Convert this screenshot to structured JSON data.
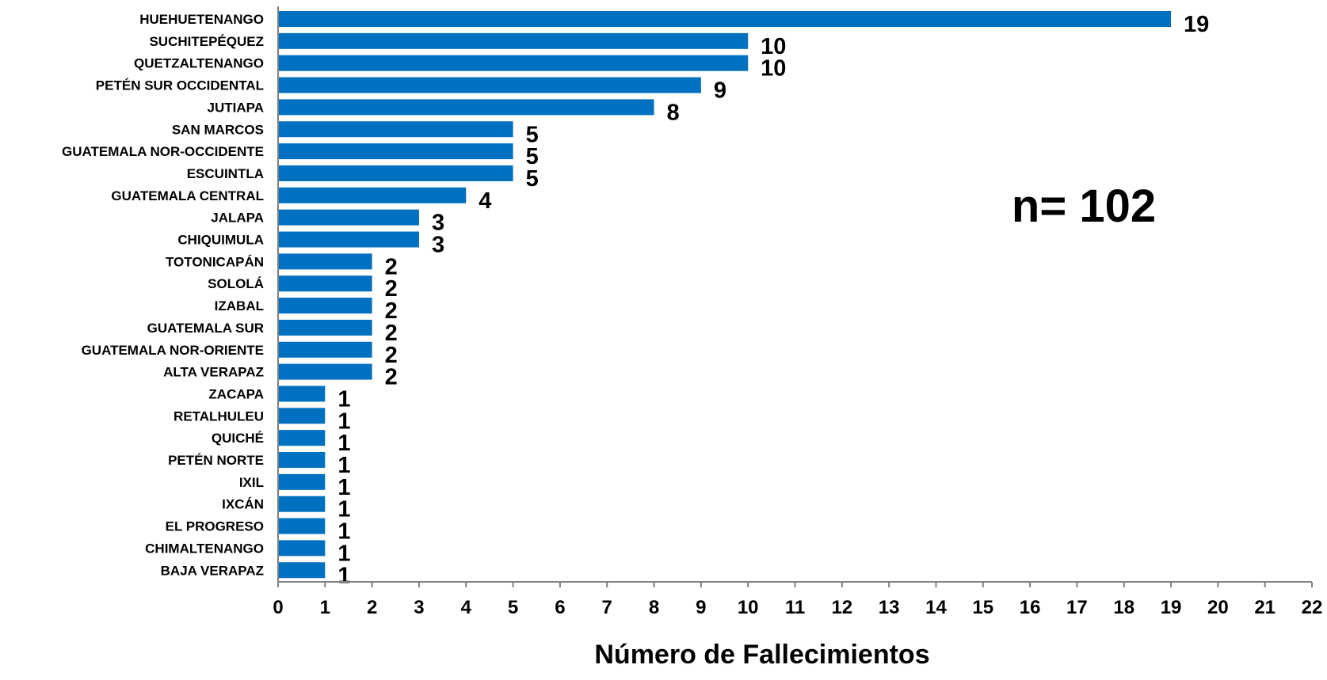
{
  "chart_data": {
    "type": "bar",
    "orientation": "horizontal",
    "categories": [
      "HUEHUETENANGO",
      "SUCHITEPÉQUEZ",
      "QUETZALTENANGO",
      "PETÉN SUR OCCIDENTAL",
      "JUTIAPA",
      "SAN MARCOS",
      "GUATEMALA NOR-OCCIDENTE",
      "ESCUINTLA",
      "GUATEMALA CENTRAL",
      "JALAPA",
      "CHIQUIMULA",
      "TOTONICAPÁN",
      "SOLOLÁ",
      "IZABAL",
      "GUATEMALA SUR",
      "GUATEMALA NOR-ORIENTE",
      "ALTA VERAPAZ",
      "ZACAPA",
      "RETALHULEU",
      "QUICHÉ",
      "PETÉN NORTE",
      "IXIL",
      "IXCÁN",
      "EL PROGRESO",
      "CHIMALTENANGO",
      "BAJA VERAPAZ"
    ],
    "values": [
      19,
      10,
      10,
      9,
      8,
      5,
      5,
      5,
      4,
      3,
      3,
      2,
      2,
      2,
      2,
      2,
      2,
      1,
      1,
      1,
      1,
      1,
      1,
      1,
      1,
      1
    ],
    "xlabel": "Número de Fallecimientos",
    "ylabel": "",
    "xlim": [
      0,
      22
    ],
    "xticks": [
      0,
      1,
      2,
      3,
      4,
      5,
      6,
      7,
      8,
      9,
      10,
      11,
      12,
      13,
      14,
      15,
      16,
      17,
      18,
      19,
      20,
      21,
      22
    ],
    "annotation": "n= 102",
    "grid": false,
    "bar_color": "#0070C0",
    "data_labels": true
  }
}
